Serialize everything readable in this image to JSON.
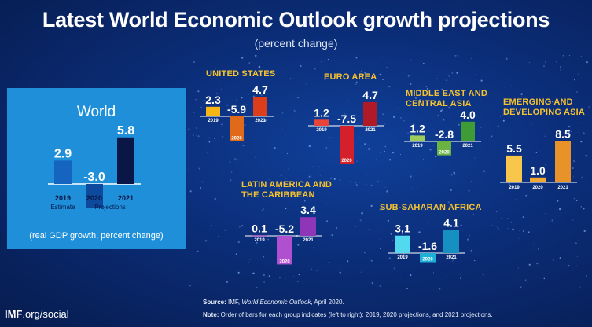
{
  "header": {
    "title": "Latest World Economic Outlook growth projections",
    "subtitle": "(percent change)"
  },
  "world_panel": {
    "title": "World",
    "caption": "(real GDP growth, percent change)",
    "estimate_label": "Estimate",
    "projections_label": "Projections"
  },
  "footer": {
    "logo_bold": "IMF",
    "logo_rest": ".org/social",
    "source_label": "Source:",
    "source_text_pre": " IMF, ",
    "source_title": "World Economic Outlook",
    "source_text_post": ", April 2020.",
    "note_label": "Note:",
    "note_text": " Order of bars for each group indicates (left to right): 2019, 2020 projections, and 2021 projections."
  },
  "colors": {
    "title_gold": "#f5c230",
    "world_panel": "#1e8fd8",
    "background": "#0b2d78"
  },
  "chart_data": [
    {
      "id": "world",
      "type": "bar",
      "title": "World",
      "categories": [
        "2019",
        "2020",
        "2021"
      ],
      "values": [
        2.9,
        -3.0,
        5.8
      ],
      "labels": [
        "2.9",
        "-3.0",
        "5.8"
      ],
      "colors": [
        "#1464c0",
        "#0d4a9e",
        "#0a1646"
      ]
    },
    {
      "id": "united-states",
      "type": "bar",
      "title": [
        "UNITED STATES"
      ],
      "categories": [
        "2019",
        "2020",
        "2021"
      ],
      "values": [
        2.3,
        -5.9,
        4.7
      ],
      "labels": [
        "2.3",
        "-5.9",
        "4.7"
      ],
      "colors": [
        "#f7b614",
        "#e06a1a",
        "#dc3e1c"
      ]
    },
    {
      "id": "euro-area",
      "type": "bar",
      "title": [
        "EURO AREA"
      ],
      "categories": [
        "2019",
        "2020",
        "2021"
      ],
      "values": [
        1.2,
        -7.5,
        4.7
      ],
      "labels": [
        "1.2",
        "-7.5",
        "4.7"
      ],
      "colors": [
        "#e8443a",
        "#d3202a",
        "#b01a26"
      ]
    },
    {
      "id": "middle-east",
      "type": "bar",
      "title": [
        "MIDDLE EAST AND",
        "CENTRAL ASIA"
      ],
      "categories": [
        "2019",
        "2020",
        "2021"
      ],
      "values": [
        1.2,
        -2.8,
        4.0
      ],
      "labels": [
        "1.2",
        "-2.8",
        "4.0"
      ],
      "colors": [
        "#9ccc5a",
        "#6ab343",
        "#3e9b35"
      ]
    },
    {
      "id": "emerging-asia",
      "type": "bar",
      "title": [
        "EMERGING AND",
        "DEVELOPING ASIA"
      ],
      "categories": [
        "2019",
        "2020",
        "2021"
      ],
      "values": [
        5.5,
        1.0,
        8.5
      ],
      "labels": [
        "5.5",
        "1.0",
        "8.5"
      ],
      "colors": [
        "#f8c64a",
        "#f0a830",
        "#e8922a"
      ]
    },
    {
      "id": "latin-america",
      "type": "bar",
      "title": [
        "LATIN AMERICA AND",
        "THE CARIBBEAN"
      ],
      "categories": [
        "2019",
        "2020",
        "2021"
      ],
      "values": [
        0.1,
        -5.2,
        3.4
      ],
      "labels": [
        "0.1",
        "-5.2",
        "3.4"
      ],
      "colors": [
        "#c77ad8",
        "#b04fd0",
        "#8e35b8"
      ]
    },
    {
      "id": "sub-saharan",
      "type": "bar",
      "title": [
        "SUB-SAHARAN AFRICA"
      ],
      "categories": [
        "2019",
        "2020",
        "2021"
      ],
      "values": [
        3.1,
        -1.6,
        4.1
      ],
      "labels": [
        "3.1",
        "-1.6",
        "4.1"
      ],
      "colors": [
        "#52d9ee",
        "#1fb0d8",
        "#1590c0"
      ]
    }
  ]
}
